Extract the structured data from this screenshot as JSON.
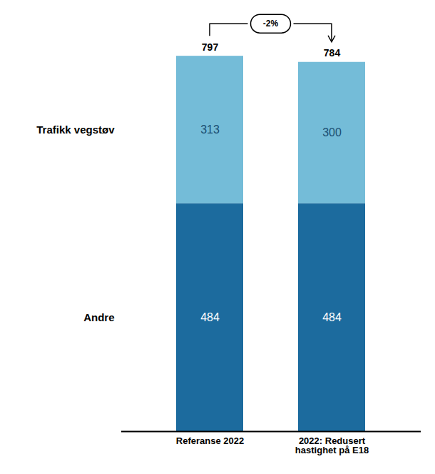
{
  "chart_data": {
    "type": "bar",
    "categories": [
      "Referanse 2022",
      "2022: Redusert\nhastighet på E18"
    ],
    "series": [
      {
        "name": "Andre",
        "color": "#1c6b9e",
        "values": [
          484,
          484
        ]
      },
      {
        "name": "Trafikk vegstøv",
        "color": "#74bcd8",
        "values": [
          313,
          300
        ]
      }
    ],
    "totals": [
      797,
      784
    ],
    "annotations": [
      "-2%"
    ],
    "stacked": true,
    "data_labels": true,
    "tick_labels": "x",
    "ylim": [
      0,
      870
    ]
  }
}
